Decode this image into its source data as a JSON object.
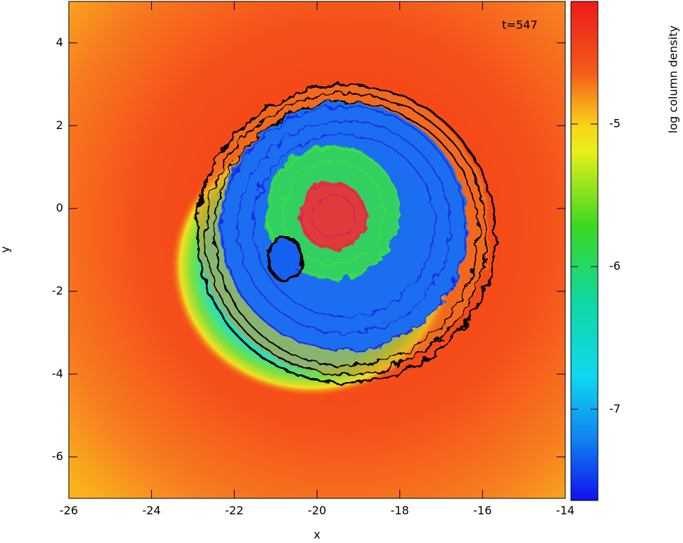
{
  "chart_data": {
    "type": "heatmap",
    "xlabel": "x",
    "ylabel": "y",
    "annotation": "t=547",
    "xlim": [
      -26,
      -14
    ],
    "xticks": [
      -26,
      -24,
      -22,
      -20,
      -18,
      -16,
      -14
    ],
    "ylim": [
      -7,
      5
    ],
    "yticks": [
      -6,
      -4,
      -2,
      0,
      2,
      4
    ],
    "colorbar_label": "log column density",
    "clim": [
      -7.64,
      -4.14
    ],
    "cticks": [
      -7,
      -6,
      -5
    ]
  }
}
